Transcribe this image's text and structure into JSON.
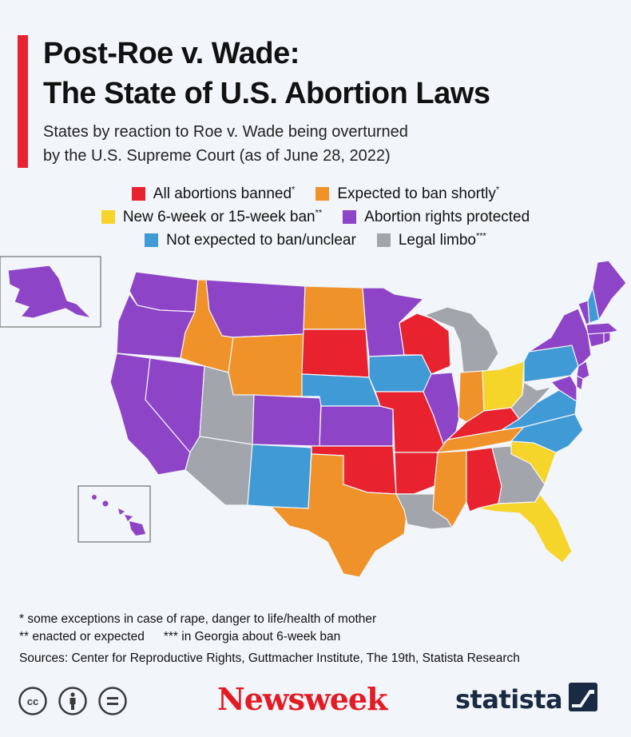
{
  "title_line1": "Post-Roe v. Wade:",
  "title_line2": "The State of U.S. Abortion Laws",
  "subtitle_line1": "States by reaction to Roe v. Wade being overturned",
  "subtitle_line2": "by the U.S. Supreme Court (as of June 28, 2022)",
  "legend": {
    "banned": {
      "label": "All abortions banned",
      "mark": "*",
      "color": "#e8222f"
    },
    "expected_ban": {
      "label": "Expected to ban shortly",
      "mark": "*",
      "color": "#f0922a"
    },
    "new_ban": {
      "label": "New 6-week or 15-week ban",
      "mark": "**",
      "color": "#f6d52b"
    },
    "protected": {
      "label": "Abortion rights protected",
      "mark": "",
      "color": "#8e44c6"
    },
    "not_expected": {
      "label": "Not expected to ban/unclear",
      "mark": "",
      "color": "#3f9ad6"
    },
    "limbo": {
      "label": "Legal limbo",
      "mark": "***",
      "color": "#a2a6ac"
    }
  },
  "footnotes": {
    "note1": "*  some exceptions in case of rape, danger to life/health of mother",
    "note2": "** enacted or expected",
    "note3": "*** in Georgia about 6-week ban",
    "sources": "Sources: Center for Reproductive Rights, Guttmacher Institute, The 19th, Statista Research"
  },
  "brand": {
    "newsweek": "Newsweek",
    "statista": "statista",
    "cc_icons": [
      "creative-commons-icon",
      "attribution-icon",
      "no-derivatives-icon"
    ]
  },
  "states": {
    "WA": "protected",
    "OR": "protected",
    "CA": "protected",
    "NV": "protected",
    "ID": "expected_ban",
    "MT": "protected",
    "WY": "expected_ban",
    "UT": "limbo",
    "AZ": "limbo",
    "CO": "protected",
    "NM": "not_expected",
    "ND": "expected_ban",
    "SD": "banned",
    "NE": "not_expected",
    "KS": "protected",
    "OK": "banned",
    "TX": "expected_ban",
    "MN": "protected",
    "IA": "not_expected",
    "MO": "banned",
    "AR": "banned",
    "LA": "limbo",
    "WI": "banned",
    "IL": "protected",
    "MI": "limbo",
    "IN": "expected_ban",
    "OH": "new_ban",
    "KY": "banned",
    "TN": "expected_ban",
    "MS": "expected_ban",
    "AL": "banned",
    "GA": "limbo",
    "FL": "new_ban",
    "SC": "new_ban",
    "NC": "not_expected",
    "VA": "not_expected",
    "WV": "limbo",
    "PA": "not_expected",
    "NY": "protected",
    "VT": "protected",
    "NH": "not_expected",
    "ME": "protected",
    "MA": "protected",
    "NJ": "protected",
    "MD": "protected",
    "DE": "protected",
    "CT": "protected",
    "RI": "protected",
    "AK": "protected",
    "HI": "protected"
  }
}
